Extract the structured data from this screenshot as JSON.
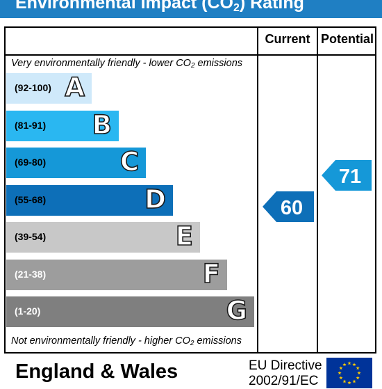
{
  "header": {
    "title_prefix": "Environmental Impact (CO",
    "title_sub": "2",
    "title_suffix": ") Rating"
  },
  "columns": {
    "current": "Current",
    "potential": "Potential"
  },
  "top_caption": {
    "prefix": "Very environmentally friendly - lower CO",
    "sub": "2",
    "suffix": " emissions"
  },
  "bottom_caption": {
    "prefix": "Not environmentally friendly - higher CO",
    "sub": "2",
    "suffix": " emissions"
  },
  "bands": [
    {
      "range": "(92-100)",
      "letter": "A",
      "color": "#cfe9fa",
      "range_color": "#000000"
    },
    {
      "range": "(81-91)",
      "letter": "B",
      "color": "#2ab7f1",
      "range_color": "#000000"
    },
    {
      "range": "(69-80)",
      "letter": "C",
      "color": "#1598d8",
      "range_color": "#000000"
    },
    {
      "range": "(55-68)",
      "letter": "D",
      "color": "#0d6fb8",
      "range_color": "#000000"
    },
    {
      "range": "(39-54)",
      "letter": "E",
      "color": "#c8c8c8",
      "range_color": "#000000"
    },
    {
      "range": "(21-38)",
      "letter": "F",
      "color": "#9d9d9d",
      "range_color": "#ffffff"
    },
    {
      "range": "(1-20)",
      "letter": "G",
      "color": "#7f7f7f",
      "range_color": "#ffffff"
    }
  ],
  "current": {
    "value": "60",
    "color": "#0d6fb8"
  },
  "potential": {
    "value": "71",
    "color": "#1598d8"
  },
  "footer": {
    "region": "England & Wales",
    "eu_line1": "EU Directive",
    "eu_line2": "2002/91/EC",
    "flag_icon": "eu-flag-icon",
    "flag_color": "#003399",
    "star_color": "#ffcc00"
  }
}
